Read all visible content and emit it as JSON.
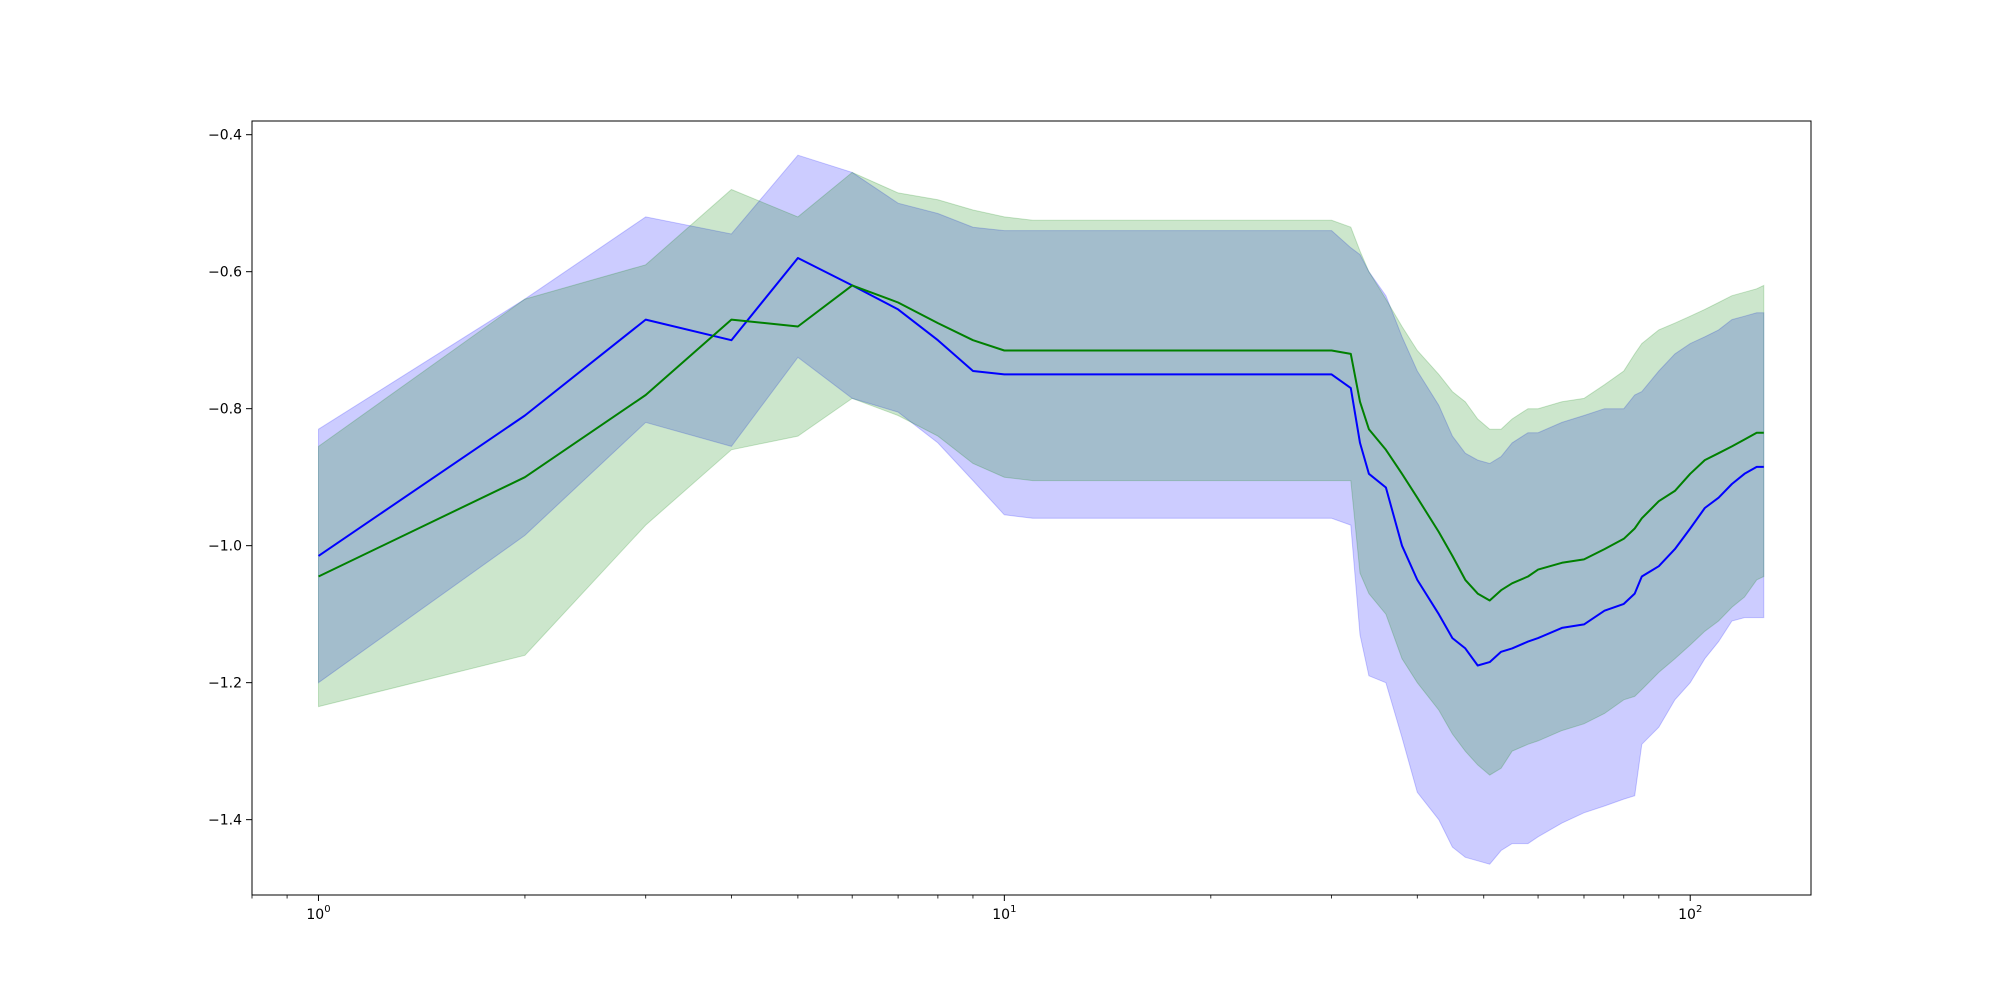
{
  "chart_data": {
    "type": "line",
    "xscale": "log",
    "xlim": [
      0.8,
      150
    ],
    "ylim": [
      -1.51,
      -0.38
    ],
    "grid": false,
    "legend": "none",
    "x_ticks": [
      {
        "value": 1,
        "base": "10",
        "exp": "0"
      },
      {
        "value": 10,
        "base": "10",
        "exp": "1"
      },
      {
        "value": 100,
        "base": "10",
        "exp": "2"
      }
    ],
    "y_ticks": [
      {
        "value": -0.4,
        "label": "−0.4"
      },
      {
        "value": -0.6,
        "label": "−0.6"
      },
      {
        "value": -0.8,
        "label": "−0.8"
      },
      {
        "value": -1.0,
        "label": "−1.0"
      },
      {
        "value": -1.2,
        "label": "−1.2"
      },
      {
        "value": -1.4,
        "label": "−1.4"
      }
    ],
    "series": [
      {
        "line_color": "#0000ff",
        "band_color": "#0000ff",
        "band_opacity": 0.2,
        "x": [
          1,
          2,
          3,
          4,
          5,
          6,
          7,
          8,
          9,
          10,
          11,
          20,
          30,
          32,
          33,
          34,
          36,
          38,
          40,
          43,
          45,
          47,
          49,
          51,
          53,
          55,
          58,
          60,
          65,
          70,
          75,
          80,
          83,
          85,
          90,
          95,
          100,
          105,
          110,
          115,
          120,
          125,
          128
        ],
        "mean": [
          -1.015,
          -0.81,
          -0.67,
          -0.7,
          -0.58,
          -0.62,
          -0.655,
          -0.7,
          -0.745,
          -0.75,
          -0.75,
          -0.75,
          -0.75,
          -0.77,
          -0.85,
          -0.895,
          -0.915,
          -1.0,
          -1.05,
          -1.1,
          -1.135,
          -1.15,
          -1.175,
          -1.17,
          -1.155,
          -1.15,
          -1.14,
          -1.135,
          -1.12,
          -1.115,
          -1.095,
          -1.085,
          -1.07,
          -1.045,
          -1.03,
          -1.005,
          -0.975,
          -0.945,
          -0.93,
          -0.91,
          -0.895,
          -0.885,
          -0.885
        ],
        "upper": [
          -0.83,
          -0.64,
          -0.52,
          -0.545,
          -0.43,
          -0.455,
          -0.5,
          -0.515,
          -0.535,
          -0.54,
          -0.54,
          -0.54,
          -0.54,
          -0.565,
          -0.575,
          -0.6,
          -0.635,
          -0.695,
          -0.745,
          -0.795,
          -0.84,
          -0.865,
          -0.875,
          -0.88,
          -0.87,
          -0.85,
          -0.835,
          -0.835,
          -0.82,
          -0.81,
          -0.8,
          -0.8,
          -0.78,
          -0.775,
          -0.745,
          -0.72,
          -0.705,
          -0.695,
          -0.685,
          -0.67,
          -0.665,
          -0.66,
          -0.66
        ],
        "lower": [
          -1.2,
          -0.985,
          -0.82,
          -0.855,
          -0.725,
          -0.785,
          -0.805,
          -0.85,
          -0.905,
          -0.955,
          -0.96,
          -0.96,
          -0.96,
          -0.97,
          -1.13,
          -1.19,
          -1.2,
          -1.28,
          -1.36,
          -1.4,
          -1.44,
          -1.455,
          -1.46,
          -1.465,
          -1.445,
          -1.435,
          -1.435,
          -1.425,
          -1.405,
          -1.39,
          -1.38,
          -1.37,
          -1.365,
          -1.29,
          -1.265,
          -1.225,
          -1.2,
          -1.165,
          -1.14,
          -1.11,
          -1.105,
          -1.105,
          -1.105
        ]
      },
      {
        "line_color": "#008000",
        "band_color": "#008000",
        "band_opacity": 0.2,
        "x": [
          1,
          2,
          3,
          4,
          5,
          6,
          7,
          8,
          9,
          10,
          11,
          20,
          30,
          32,
          33,
          34,
          36,
          38,
          40,
          43,
          45,
          47,
          49,
          51,
          53,
          55,
          58,
          60,
          65,
          70,
          75,
          80,
          83,
          85,
          90,
          95,
          100,
          105,
          110,
          115,
          120,
          125,
          128
        ],
        "mean": [
          -1.045,
          -0.9,
          -0.78,
          -0.67,
          -0.68,
          -0.62,
          -0.645,
          -0.675,
          -0.7,
          -0.715,
          -0.715,
          -0.715,
          -0.715,
          -0.72,
          -0.79,
          -0.83,
          -0.86,
          -0.895,
          -0.93,
          -0.98,
          -1.015,
          -1.05,
          -1.07,
          -1.08,
          -1.065,
          -1.055,
          -1.045,
          -1.035,
          -1.025,
          -1.02,
          -1.005,
          -0.99,
          -0.975,
          -0.96,
          -0.935,
          -0.92,
          -0.895,
          -0.875,
          -0.865,
          -0.855,
          -0.845,
          -0.835,
          -0.835
        ],
        "upper": [
          -0.855,
          -0.64,
          -0.59,
          -0.48,
          -0.52,
          -0.455,
          -0.485,
          -0.495,
          -0.51,
          -0.52,
          -0.525,
          -0.525,
          -0.525,
          -0.535,
          -0.57,
          -0.6,
          -0.64,
          -0.68,
          -0.715,
          -0.75,
          -0.775,
          -0.79,
          -0.815,
          -0.83,
          -0.83,
          -0.815,
          -0.8,
          -0.8,
          -0.79,
          -0.785,
          -0.765,
          -0.745,
          -0.72,
          -0.705,
          -0.685,
          -0.675,
          -0.665,
          -0.655,
          -0.645,
          -0.635,
          -0.63,
          -0.625,
          -0.62
        ],
        "lower": [
          -1.235,
          -1.16,
          -0.97,
          -0.86,
          -0.84,
          -0.785,
          -0.81,
          -0.84,
          -0.88,
          -0.9,
          -0.905,
          -0.905,
          -0.905,
          -0.905,
          -1.04,
          -1.07,
          -1.1,
          -1.165,
          -1.2,
          -1.24,
          -1.275,
          -1.3,
          -1.32,
          -1.335,
          -1.325,
          -1.3,
          -1.29,
          -1.285,
          -1.27,
          -1.26,
          -1.245,
          -1.225,
          -1.22,
          -1.21,
          -1.185,
          -1.165,
          -1.145,
          -1.125,
          -1.11,
          -1.09,
          -1.075,
          -1.05,
          -1.045
        ]
      }
    ]
  }
}
